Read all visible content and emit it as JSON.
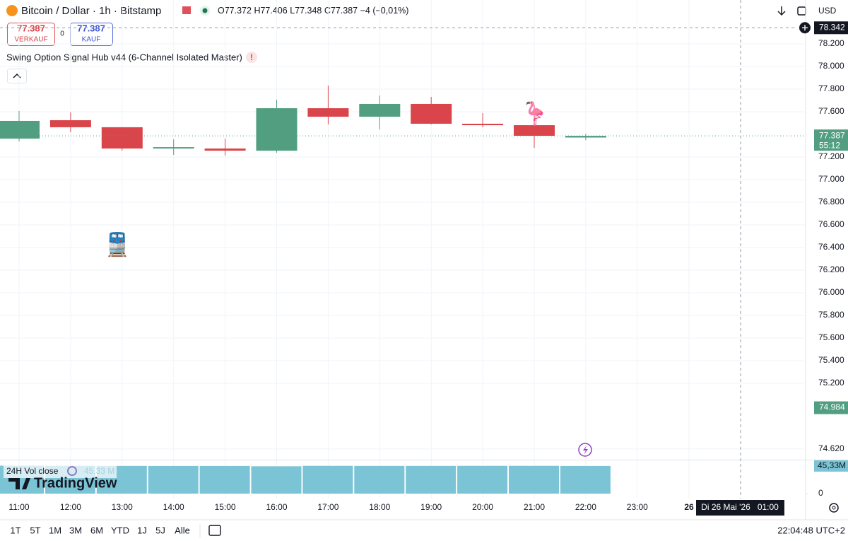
{
  "chart_data": [
    {
      "type": "candlestick",
      "title": "Bitcoin / Dollar · 1h · Bitstamp",
      "categories": [
        "11:00",
        "12:00",
        "13:00",
        "14:00",
        "15:00",
        "16:00",
        "17:00",
        "18:00",
        "19:00",
        "20:00",
        "21:00",
        "22:00"
      ],
      "extra_xlabels": [
        "23:00",
        "26"
      ],
      "open": [
        77.3625,
        77.525,
        77.463,
        77.275,
        77.275,
        77.256,
        77.631,
        77.556,
        77.669,
        77.494,
        77.481,
        77.372
      ],
      "high": [
        77.606,
        77.594,
        77.463,
        77.356,
        77.363,
        77.706,
        77.831,
        77.744,
        77.731,
        77.588,
        77.663,
        77.406
      ],
      "low": [
        77.337,
        77.419,
        77.256,
        77.219,
        77.213,
        77.238,
        77.488,
        77.444,
        77.488,
        77.463,
        77.281,
        77.348
      ],
      "close": [
        77.519,
        77.463,
        77.275,
        77.287,
        77.256,
        77.631,
        77.556,
        77.669,
        77.494,
        77.481,
        77.3875,
        77.387
      ],
      "up_color": "#529e80",
      "down_color": "#d9454b",
      "ylim": [
        74.525,
        78.5875
      ],
      "yticks": [
        {
          "value": 78.2,
          "label": "78.200"
        },
        {
          "value": 78.0,
          "label": "78.000"
        },
        {
          "value": 77.8,
          "label": "77.800"
        },
        {
          "value": 77.6,
          "label": "77.600"
        },
        {
          "value": 77.2,
          "label": "77.200"
        },
        {
          "value": 77.0,
          "label": "77.000"
        },
        {
          "value": 76.8,
          "label": "76.800"
        },
        {
          "value": 76.6,
          "label": "76.600"
        },
        {
          "value": 76.4,
          "label": "76.400"
        },
        {
          "value": 76.2,
          "label": "76.200"
        },
        {
          "value": 76.0,
          "label": "76.000"
        },
        {
          "value": 75.8,
          "label": "75.800"
        },
        {
          "value": 75.6,
          "label": "75.600"
        },
        {
          "value": 75.4,
          "label": "75.400"
        },
        {
          "value": 75.2,
          "label": "75.200"
        },
        {
          "value": 74.62,
          "label": "74.620"
        }
      ],
      "grid": true,
      "price_markers": [
        {
          "value": 78.342,
          "label": "78.342",
          "color": "#131722"
        },
        {
          "value": 77.387,
          "label": "77.387",
          "color": "#529e80",
          "sub": "55:12"
        },
        {
          "value": 74.984,
          "label": "74.984",
          "color": "#529e80"
        }
      ],
      "crosshair_label": "Di 26 Mai '26   01:00",
      "ohlc": [
        "O77.372",
        "H77.406",
        "L77.348",
        "C77.387",
        "−4 (−0,01%)"
      ],
      "annotations": [
        {
          "label": "🚆"
        },
        {
          "label": "🦩"
        }
      ]
    },
    {
      "type": "bar",
      "title": "24H Vol close",
      "legend_value": "45,33 M",
      "values": [
        45.8,
        45.5,
        45.4,
        45.3,
        45.3,
        44.8,
        45.5,
        45.4,
        45.4,
        45.5,
        45.5,
        45.33
      ],
      "color": "#7ac4d6",
      "ylim": [
        0,
        51
      ],
      "yticks": [
        0,
        {
          "value": 45.33,
          "label": "45,33M"
        }
      ]
    }
  ],
  "indicator": "Swing Option Signal Hub v44 (6-Channel Isolated Master)",
  "indicator_badge": "!",
  "sell": {
    "price": "77.387",
    "label": "VERKAUF"
  },
  "spread": "0",
  "buy": {
    "price": "77.387",
    "label": "KAUF"
  },
  "currency": "USD",
  "watermark": "TradingView",
  "ranges": [
    "1T",
    "5T",
    "1M",
    "3M",
    "6M",
    "YTD",
    "1J",
    "5J",
    "Alle"
  ],
  "clock": "22:04:48 UTC+2"
}
